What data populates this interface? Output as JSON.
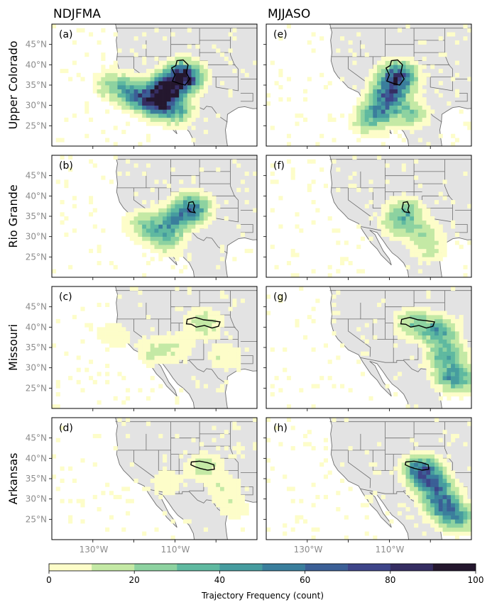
{
  "chart_data": {
    "type": "heatmap",
    "columns": [
      "NDJFMA",
      "MJJASO"
    ],
    "rows": [
      "Upper Colorado",
      "Rio Grande",
      "Missouri",
      "Arkansas"
    ],
    "panel_letters": [
      "(a)",
      "(e)",
      "(b)",
      "(f)",
      "(c)",
      "(g)",
      "(d)",
      "(h)"
    ],
    "lon_range": [
      -140,
      -90
    ],
    "lat_range": [
      20,
      50
    ],
    "lon_tick_labels": [
      "130°W",
      "110°W"
    ],
    "lat_tick_labels": [
      "45°N",
      "40°N",
      "35°N",
      "30°N",
      "25°N"
    ],
    "colorbar": {
      "label": "Trajectory Frequency (count)",
      "ticks": [
        "0",
        "20",
        "40",
        "60",
        "80",
        "100"
      ],
      "range": [
        0,
        100
      ],
      "step": 10,
      "colors": [
        "#fdfdc9",
        "#c4e9a5",
        "#8dd2a0",
        "#5fb9a0",
        "#469c9f",
        "#3a7e9c",
        "#3b5f96",
        "#3e4589",
        "#352d62",
        "#24172e"
      ]
    },
    "land_color": "#e3e3e3",
    "border_color": "#6e6e6e",
    "basin_color": "#000000",
    "panels": [
      {
        "letter": "(a)",
        "season": "NDJFMA",
        "basin": "Upper Colorado",
        "basin_center": [
          -108,
          38
        ],
        "intensity": "very high",
        "hotspots": [
          [
            -108,
            37,
            100
          ],
          [
            -112,
            34,
            95
          ],
          [
            -115,
            31,
            80
          ],
          [
            -120,
            33,
            45
          ],
          [
            -125,
            35,
            25
          ],
          [
            -110,
            29,
            40
          ]
        ]
      },
      {
        "letter": "(e)",
        "season": "MJJASO",
        "basin": "Upper Colorado",
        "basin_center": [
          -108,
          38
        ],
        "intensity": "high",
        "hotspots": [
          [
            -108,
            37,
            80
          ],
          [
            -110,
            33,
            55
          ],
          [
            -112,
            29,
            45
          ],
          [
            -105,
            28,
            25
          ],
          [
            -115,
            26,
            20
          ]
        ]
      },
      {
        "letter": "(b)",
        "season": "NDJFMA",
        "basin": "Rio Grande",
        "basin_center": [
          -106,
          37.3
        ],
        "intensity": "moderate",
        "hotspots": [
          [
            -106,
            37,
            55
          ],
          [
            -110,
            34,
            35
          ],
          [
            -114,
            32,
            25
          ],
          [
            -118,
            33,
            15
          ],
          [
            -112,
            29,
            20
          ]
        ]
      },
      {
        "letter": "(f)",
        "season": "MJJASO",
        "basin": "Rio Grande",
        "basin_center": [
          -106,
          37.3
        ],
        "intensity": "low",
        "hotspots": [
          [
            -106,
            36,
            30
          ],
          [
            -108,
            33,
            18
          ],
          [
            -102,
            31,
            15
          ],
          [
            -100,
            27,
            12
          ]
        ]
      },
      {
        "letter": "(c)",
        "season": "NDJFMA",
        "basin": "Missouri",
        "basin_center": [
          -103,
          41
        ],
        "intensity": "low",
        "hotspots": [
          [
            -103,
            41,
            18
          ],
          [
            -115,
            34,
            12
          ],
          [
            -110,
            35,
            10
          ],
          [
            -98,
            33,
            10
          ],
          [
            -125,
            38,
            8
          ]
        ]
      },
      {
        "letter": "(g)",
        "season": "MJJASO",
        "basin": "Missouri",
        "basin_center": [
          -103,
          41
        ],
        "intensity": "moderate",
        "hotspots": [
          [
            -98,
            39,
            45
          ],
          [
            -96,
            33,
            40
          ],
          [
            -95,
            28,
            35
          ],
          [
            -104,
            41,
            25
          ],
          [
            -92,
            27,
            20
          ]
        ]
      },
      {
        "letter": "(d)",
        "season": "NDJFMA",
        "basin": "Arkansas",
        "basin_center": [
          -103,
          38.5
        ],
        "intensity": "low",
        "hotspots": [
          [
            -103,
            38,
            15
          ],
          [
            -112,
            34,
            8
          ],
          [
            -98,
            33,
            10
          ],
          [
            -96,
            28,
            8
          ]
        ]
      },
      {
        "letter": "(h)",
        "season": "MJJASO",
        "basin": "Arkansas",
        "basin_center": [
          -103,
          38.5
        ],
        "intensity": "high",
        "hotspots": [
          [
            -102,
            37,
            65
          ],
          [
            -99,
            33,
            55
          ],
          [
            -97,
            29,
            45
          ],
          [
            -95,
            26,
            30
          ],
          [
            -92,
            25,
            20
          ]
        ]
      }
    ]
  }
}
